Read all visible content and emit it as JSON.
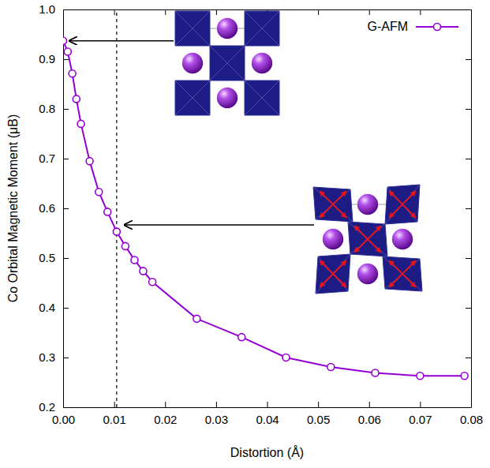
{
  "chart_data": {
    "type": "line",
    "x_label": "Distortion (Å)",
    "y_label": "Co Orbital Magnetic Moment (μB)",
    "x": [
      0,
      0.0009,
      0.0018,
      0.0026,
      0.0035,
      0.0052,
      0.007,
      0.0087,
      0.0105,
      0.0122,
      0.014,
      0.0157,
      0.0175,
      0.0262,
      0.035,
      0.0437,
      0.0525,
      0.0612,
      0.07,
      0.0787
    ],
    "series": [
      {
        "name": "G-AFM",
        "color": "#9400d3",
        "marker": "circle",
        "values": [
          0.937,
          0.915,
          0.871,
          0.82,
          0.77,
          0.695,
          0.633,
          0.593,
          0.553,
          0.524,
          0.496,
          0.474,
          0.452,
          0.378,
          0.341,
          0.3,
          0.281,
          0.269,
          0.263,
          0.263
        ]
      }
    ],
    "vline": 0.0105,
    "xlim": [
      0,
      0.08
    ],
    "ylim": [
      0.2,
      1.0
    ],
    "xticks": [
      {
        "value": 0,
        "label": "0.00"
      },
      {
        "value": 0.01,
        "label": "0.01"
      },
      {
        "value": 0.02,
        "label": "0.02"
      },
      {
        "value": 0.03,
        "label": "0.03"
      },
      {
        "value": 0.04,
        "label": "0.04"
      },
      {
        "value": 0.05,
        "label": "0.05"
      },
      {
        "value": 0.06,
        "label": "0.06"
      },
      {
        "value": 0.07,
        "label": "0.07"
      },
      {
        "value": 0.08,
        "label": "0.08"
      }
    ],
    "yticks": [
      0.2,
      0.3,
      0.4,
      0.5,
      0.6,
      0.7,
      0.8,
      0.9,
      {
        "value": 1.0,
        "label": "1.0"
      }
    ],
    "legend": "top-right"
  }
}
